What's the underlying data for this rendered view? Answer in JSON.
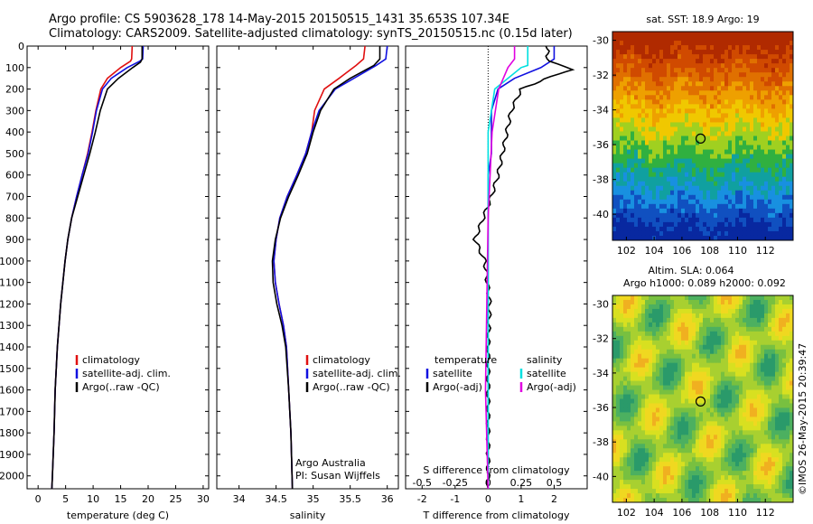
{
  "header": {
    "line1": "Argo profile: CS 5903628_178 14-May-2015 20150515_1431 35.653S 107.34E",
    "line2": "Climatology: CARS2009. Satellite-adjusted climatology: synTS_20150515.nc (0.15d later)"
  },
  "colors": {
    "climatology": "#e01010",
    "satellite": "#1010e0",
    "argo": "#000000",
    "sat_diff_s": "#00e0e0",
    "argo_diff_s": "#e000e0"
  },
  "chart_data": [
    {
      "type": "line",
      "panel": "temperature",
      "xlabel": "temperature (deg C)",
      "ylabel": "",
      "xlim": [
        -2,
        31
      ],
      "ylim": [
        2060,
        0
      ],
      "xticks": [
        "0",
        "5",
        "10",
        "15",
        "20",
        "25",
        "30"
      ],
      "yticks": [
        "0",
        "100",
        "200",
        "300",
        "400",
        "500",
        "600",
        "700",
        "800",
        "900",
        "1000",
        "1100",
        "1200",
        "1300",
        "1400",
        "1500",
        "1600",
        "1700",
        "1800",
        "1900",
        "2000"
      ],
      "legend": {
        "position": "lower-center",
        "entries": [
          "climatology",
          "satellite-adj. clim.",
          "Argo(..raw -QC)"
        ]
      },
      "series": [
        {
          "name": "climatology",
          "points": [
            [
              17.1,
              0
            ],
            [
              17.0,
              60
            ],
            [
              16.8,
              70
            ],
            [
              15.0,
              100
            ],
            [
              12.6,
              150
            ],
            [
              11.4,
              200
            ],
            [
              10.5,
              300
            ],
            [
              9.8,
              400
            ],
            [
              9.0,
              500
            ],
            [
              8.0,
              600
            ],
            [
              7.0,
              700
            ],
            [
              6.1,
              800
            ],
            [
              5.4,
              900
            ],
            [
              4.9,
              1000
            ],
            [
              4.5,
              1100
            ],
            [
              4.1,
              1200
            ],
            [
              3.8,
              1300
            ],
            [
              3.5,
              1400
            ],
            [
              3.3,
              1500
            ],
            [
              3.1,
              1600
            ],
            [
              2.9,
              1800
            ],
            [
              2.6,
              2000
            ],
            [
              2.5,
              2060
            ]
          ]
        },
        {
          "name": "satellite-adj. clim.",
          "points": [
            [
              19.1,
              0
            ],
            [
              19.0,
              60
            ],
            [
              18.5,
              70
            ],
            [
              16.2,
              100
            ],
            [
              13.3,
              150
            ],
            [
              11.7,
              200
            ],
            [
              10.6,
              300
            ],
            [
              9.9,
              400
            ],
            [
              9.1,
              500
            ],
            [
              8.0,
              600
            ],
            [
              7.0,
              700
            ],
            [
              6.1,
              800
            ],
            [
              5.4,
              900
            ],
            [
              4.9,
              1000
            ],
            [
              4.5,
              1100
            ],
            [
              4.1,
              1200
            ],
            [
              3.8,
              1300
            ],
            [
              3.5,
              1400
            ],
            [
              3.3,
              1500
            ],
            [
              3.1,
              1600
            ],
            [
              2.9,
              1800
            ],
            [
              2.6,
              2000
            ],
            [
              2.5,
              2060
            ]
          ]
        },
        {
          "name": "Argo(..raw -QC)",
          "points": [
            [
              18.9,
              0
            ],
            [
              18.9,
              60
            ],
            [
              18.6,
              75
            ],
            [
              17.2,
              100
            ],
            [
              14.6,
              150
            ],
            [
              12.6,
              200
            ],
            [
              11.3,
              300
            ],
            [
              10.4,
              400
            ],
            [
              9.4,
              500
            ],
            [
              8.3,
              600
            ],
            [
              7.2,
              700
            ],
            [
              6.1,
              800
            ],
            [
              5.4,
              900
            ],
            [
              4.9,
              1000
            ],
            [
              4.5,
              1100
            ],
            [
              4.1,
              1200
            ],
            [
              3.8,
              1300
            ],
            [
              3.5,
              1400
            ],
            [
              3.3,
              1500
            ],
            [
              3.1,
              1600
            ],
            [
              2.9,
              1800
            ],
            [
              2.6,
              2000
            ],
            [
              2.5,
              2060
            ]
          ]
        }
      ]
    },
    {
      "type": "line",
      "panel": "salinity",
      "xlabel": "salinity",
      "ylabel": "",
      "xlim": [
        33.7,
        36.15
      ],
      "ylim": [
        2060,
        0
      ],
      "xticks": [
        "34",
        "34.5",
        "35",
        "35.5",
        "36"
      ],
      "legend": {
        "position": "lower-right",
        "entries": [
          "climatology",
          "satellite-adj. clim.",
          "Argo(..raw -QC)"
        ]
      },
      "annotation": [
        "Argo Australia",
        "PI: Susan Wijffels"
      ],
      "series": [
        {
          "name": "climatology",
          "points": [
            [
              35.7,
              0
            ],
            [
              35.68,
              60
            ],
            [
              35.58,
              90
            ],
            [
              35.35,
              150
            ],
            [
              35.15,
              200
            ],
            [
              35.02,
              300
            ],
            [
              34.98,
              400
            ],
            [
              34.9,
              500
            ],
            [
              34.78,
              600
            ],
            [
              34.65,
              700
            ],
            [
              34.55,
              800
            ],
            [
              34.5,
              900
            ],
            [
              34.47,
              1000
            ],
            [
              34.49,
              1100
            ],
            [
              34.54,
              1200
            ],
            [
              34.6,
              1300
            ],
            [
              34.64,
              1400
            ],
            [
              34.67,
              1600
            ],
            [
              34.7,
              1800
            ],
            [
              34.72,
              2060
            ]
          ]
        },
        {
          "name": "satellite-adj. clim.",
          "points": [
            [
              36.0,
              0
            ],
            [
              35.98,
              60
            ],
            [
              35.85,
              90
            ],
            [
              35.55,
              150
            ],
            [
              35.3,
              200
            ],
            [
              35.08,
              300
            ],
            [
              34.98,
              400
            ],
            [
              34.9,
              500
            ],
            [
              34.78,
              600
            ],
            [
              34.65,
              700
            ],
            [
              34.55,
              800
            ],
            [
              34.5,
              900
            ],
            [
              34.47,
              1000
            ],
            [
              34.49,
              1100
            ],
            [
              34.54,
              1200
            ],
            [
              34.6,
              1300
            ],
            [
              34.64,
              1400
            ],
            [
              34.67,
              1600
            ],
            [
              34.7,
              1800
            ],
            [
              34.72,
              2060
            ]
          ]
        },
        {
          "name": "Argo(..raw -QC)",
          "points": [
            [
              35.9,
              0
            ],
            [
              35.9,
              60
            ],
            [
              35.82,
              90
            ],
            [
              35.5,
              150
            ],
            [
              35.28,
              200
            ],
            [
              35.1,
              300
            ],
            [
              35.0,
              400
            ],
            [
              34.92,
              500
            ],
            [
              34.8,
              600
            ],
            [
              34.67,
              700
            ],
            [
              34.56,
              800
            ],
            [
              34.49,
              900
            ],
            [
              34.45,
              1000
            ],
            [
              34.46,
              1100
            ],
            [
              34.51,
              1200
            ],
            [
              34.58,
              1300
            ],
            [
              34.63,
              1400
            ],
            [
              34.67,
              1600
            ],
            [
              34.7,
              1800
            ],
            [
              34.72,
              2060
            ]
          ]
        }
      ]
    },
    {
      "type": "line",
      "panel": "difference",
      "xlabel": "T difference from climatology",
      "xlabel_top": "S difference from climatology",
      "xlim": [
        -2.5,
        3.0
      ],
      "ylim": [
        2060,
        0
      ],
      "xticks_T": [
        "-2",
        "-1",
        "0",
        "1",
        "2"
      ],
      "xticks_S": [
        "-0.5",
        "-0.25",
        "0",
        "0.25",
        "0.5"
      ],
      "legend": {
        "position": "lower-center",
        "left_title": "temperature",
        "right_title": "salinity",
        "left_entries": [
          "satellite",
          "Argo(-adj)"
        ],
        "right_entries": [
          "satellite",
          "Argo(-adj)"
        ]
      },
      "series": [
        {
          "name": "temperature satellite",
          "points": [
            [
              2.0,
              0
            ],
            [
              2.0,
              60
            ],
            [
              1.6,
              100
            ],
            [
              0.8,
              150
            ],
            [
              0.3,
              200
            ],
            [
              0.1,
              300
            ],
            [
              0.1,
              500
            ],
            [
              0,
              600
            ],
            [
              0,
              800
            ],
            [
              0,
              1000
            ],
            [
              0,
              2060
            ]
          ]
        },
        {
          "name": "temperature Argo(-adj)",
          "points": [
            [
              1.8,
              0
            ],
            [
              1.8,
              70
            ],
            [
              2.6,
              110
            ],
            [
              2.1,
              130
            ],
            [
              1.0,
              200
            ],
            [
              0.7,
              300
            ],
            [
              0.5,
              450
            ],
            [
              0.3,
              600
            ],
            [
              0.1,
              700
            ],
            [
              -0.4,
              900
            ],
            [
              -0.1,
              1000
            ],
            [
              0.05,
              1200
            ],
            [
              0,
              1400
            ],
            [
              0,
              2060
            ]
          ]
        },
        {
          "name": "salinity satellite",
          "points": [
            [
              0.3,
              0
            ],
            [
              0.3,
              60
            ],
            [
              0.3,
              90
            ],
            [
              0.25,
              100
            ],
            [
              0.05,
              200
            ],
            [
              0,
              400
            ],
            [
              0,
              2060
            ]
          ]
        },
        {
          "name": "salinity Argo(-adj)",
          "points": [
            [
              0.2,
              0
            ],
            [
              0.2,
              60
            ],
            [
              0.15,
              100
            ],
            [
              0.08,
              200
            ],
            [
              0.03,
              400
            ],
            [
              0,
              800
            ],
            [
              -0.02,
              1600
            ],
            [
              0,
              2060
            ]
          ]
        }
      ]
    },
    {
      "type": "heatmap",
      "panel": "sst-map",
      "title": "sat. SST: 18.9 Argo: 19",
      "xlim": [
        101,
        114
      ],
      "ylim": [
        -41.5,
        -29.5
      ],
      "xticks": [
        "102",
        "104",
        "106",
        "108",
        "110",
        "112"
      ],
      "yticks": [
        "-30",
        "-32",
        "-34",
        "-36",
        "-38",
        "-40"
      ],
      "marker": [
        107.34,
        -35.65
      ]
    },
    {
      "type": "heatmap",
      "panel": "sla-map",
      "title_line1": "Altim. SLA: 0.064",
      "title_line2": "Argo h1000: 0.089 h2000: 0.092",
      "xlim": [
        101,
        114
      ],
      "ylim": [
        -41.5,
        -29.5
      ],
      "xticks": [
        "102",
        "104",
        "106",
        "108",
        "110",
        "112"
      ],
      "yticks": [
        "-30",
        "-32",
        "-34",
        "-36",
        "-38",
        "-40"
      ],
      "marker": [
        107.34,
        -35.65
      ]
    }
  ],
  "footer_vertical": "©IMOS 26-May-2015 20:39:47"
}
